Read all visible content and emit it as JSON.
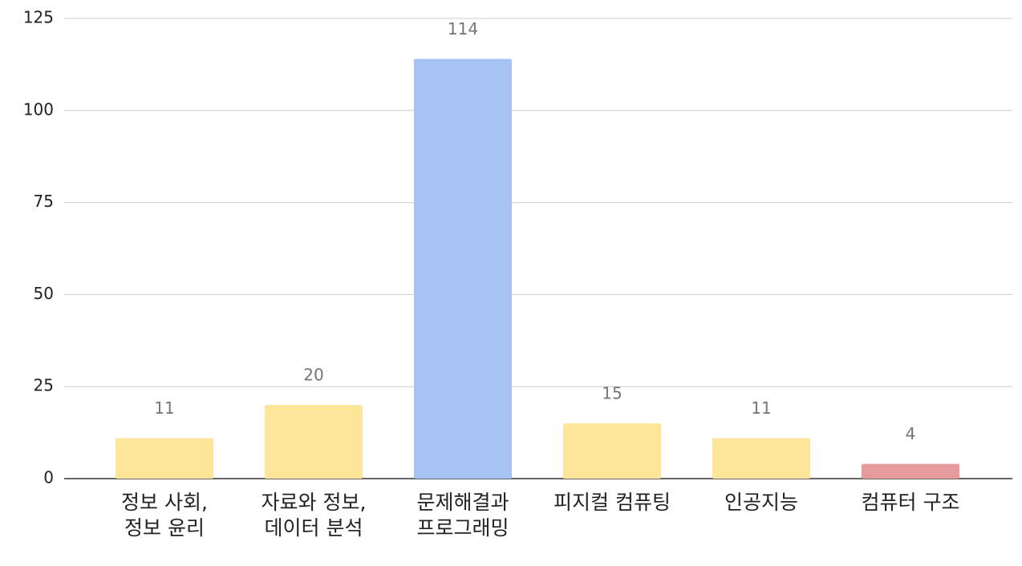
{
  "chart_data": {
    "type": "bar",
    "categories": [
      "정보 사회,\n정보 윤리",
      "자료와 정보,\n데이터 분석",
      "문제해결과\n프로그래밍",
      "피지컬 컴퓨팅",
      "인공지능",
      "컴퓨터 구조"
    ],
    "values": [
      11,
      20,
      114,
      15,
      11,
      4
    ],
    "colors": [
      "#fde59a",
      "#fde59a",
      "#a6c3f3",
      "#fde59a",
      "#fde59a",
      "#e69a9b"
    ],
    "ylim": [
      0,
      125
    ],
    "yticks": [
      0,
      25,
      50,
      75,
      100,
      125
    ],
    "grid": true
  }
}
